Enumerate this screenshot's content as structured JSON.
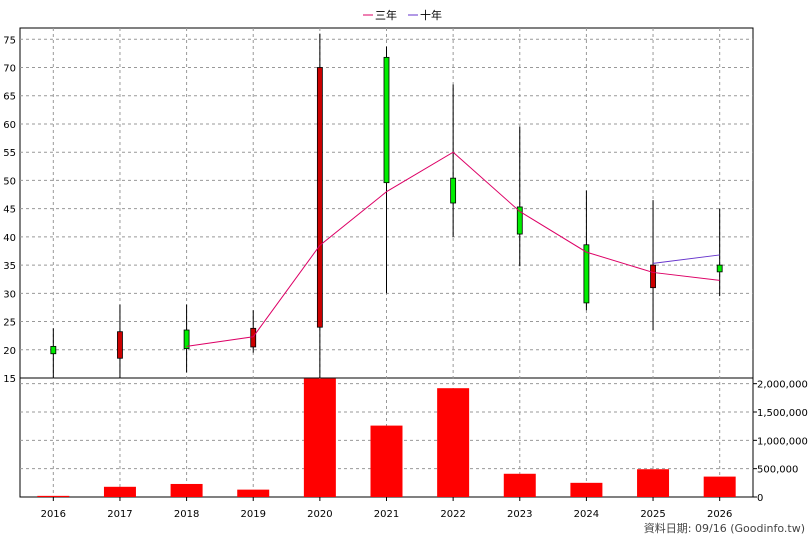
{
  "chart_data": {
    "type": "candlestick",
    "legend": [
      {
        "name": "三年",
        "color": "#dd0066"
      },
      {
        "name": "十年",
        "color": "#6633cc"
      }
    ],
    "categories": [
      "2016",
      "2017",
      "2018",
      "2019",
      "2020",
      "2021",
      "2022",
      "2023",
      "2024",
      "2025",
      "2026"
    ],
    "price_axis": {
      "ylim": [
        15,
        77
      ],
      "ticks": [
        15,
        20,
        25,
        30,
        35,
        40,
        45,
        50,
        55,
        60,
        65,
        70,
        75
      ]
    },
    "candles": [
      {
        "open": 19.3,
        "close": 20.6,
        "high": 23.8,
        "low": 15.0
      },
      {
        "open": 23.2,
        "close": 18.5,
        "high": 28.0,
        "low": 15.0
      },
      {
        "open": 20.2,
        "close": 23.5,
        "high": 28.0,
        "low": 16.0
      },
      {
        "open": 23.8,
        "close": 20.5,
        "high": 27.0,
        "low": 19.5
      },
      {
        "open": 70.0,
        "close": 24.0,
        "high": 76.0,
        "low": 15.0
      },
      {
        "open": 49.6,
        "close": 71.8,
        "high": 73.7,
        "low": 30.0
      },
      {
        "open": 46.0,
        "close": 50.4,
        "high": 67.0,
        "low": 40.0
      },
      {
        "open": 40.5,
        "close": 45.3,
        "high": 59.5,
        "low": 34.8
      },
      {
        "open": 28.3,
        "close": 38.6,
        "high": 48.2,
        "low": 27.0
      },
      {
        "open": 35.0,
        "close": 31.0,
        "high": 46.5,
        "low": 23.5
      },
      {
        "open": 33.8,
        "close": 35.0,
        "high": 45.0,
        "low": 29.5
      }
    ],
    "up_color": "#00ee00",
    "down_color": "#cc0000",
    "ma_three_year": [
      null,
      null,
      20.6,
      22.3,
      38.5,
      48.0,
      55.0,
      44.5,
      37.3,
      33.7,
      32.3
    ],
    "ma_ten_year": [
      null,
      null,
      null,
      null,
      null,
      null,
      null,
      null,
      null,
      35.3,
      36.8
    ],
    "volume_axis": {
      "ylim": [
        0,
        2100000
      ],
      "ticks": [
        0,
        500000,
        1000000,
        1500000,
        2000000
      ],
      "tick_labels": [
        "0",
        "500,000",
        "1,000,000",
        "1,500,000",
        "2,000,000"
      ]
    },
    "volumes": [
      20000,
      180000,
      230000,
      130000,
      2090000,
      1260000,
      1920000,
      410000,
      250000,
      490000,
      360000
    ],
    "volume_color": "#ff0000"
  },
  "footer": {
    "text": "資料日期: 09/16  (Goodinfo.tw)"
  }
}
